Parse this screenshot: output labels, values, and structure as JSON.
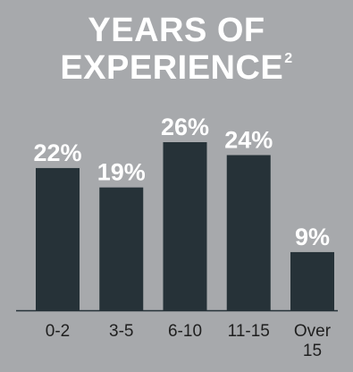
{
  "title": {
    "line1": "YEARS OF",
    "line2": "EXPERIENCE",
    "footnote_marker": "2"
  },
  "colors": {
    "background": "#a7a9ac",
    "bar": "#263238",
    "label_text": "#ffffff",
    "tick_text": "#1f1f1f",
    "axis_line": "#263238"
  },
  "chart_data": {
    "type": "bar",
    "title": "YEARS OF EXPERIENCE",
    "categories": [
      "0-2",
      "3-5",
      "6-10",
      "11-15",
      "Over 15"
    ],
    "category_lines": [
      [
        "0-2"
      ],
      [
        "3-5"
      ],
      [
        "6-10"
      ],
      [
        "11-15"
      ],
      [
        "Over",
        "15"
      ]
    ],
    "values": [
      22,
      19,
      26,
      24,
      9
    ],
    "value_labels": [
      "22%",
      "19%",
      "26%",
      "24%",
      "9%"
    ],
    "unit": "%",
    "xlabel": "",
    "ylabel": "",
    "ylim": [
      0,
      26
    ],
    "grid": false,
    "legend": "none"
  }
}
